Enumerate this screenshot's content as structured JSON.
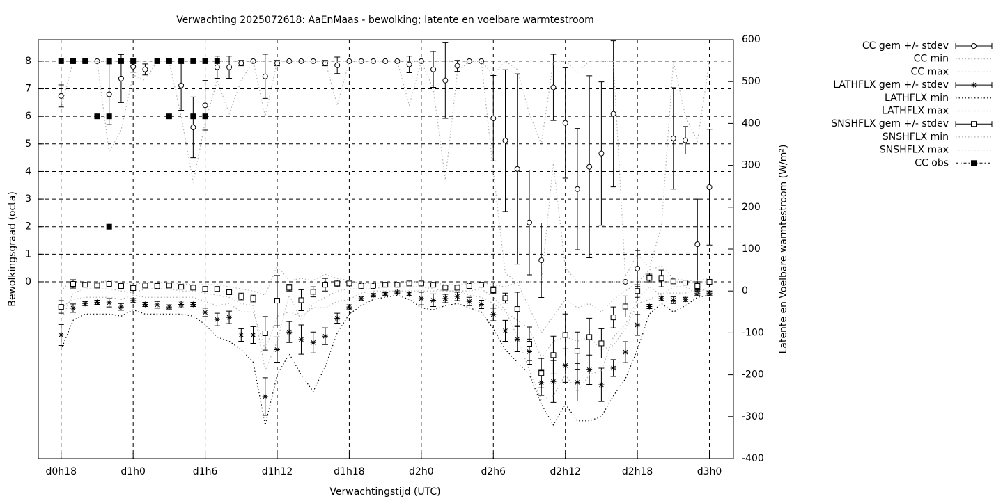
{
  "chart_data": {
    "type": "errorbar-line",
    "title": "Verwachting 2025072618: AaEnMaas - bewolking; latente en voelbare warmtestroom",
    "x_label": "Verwachtingstijd (UTC)",
    "y_label": "Bewolkingsgraad (octa)",
    "y2_label": "Latente en Voelbare warmtestroom (W/m²)",
    "x": [
      0,
      1,
      2,
      3,
      4,
      5,
      6,
      7,
      8,
      9,
      10,
      11,
      12,
      13,
      14,
      15,
      16,
      17,
      18,
      19,
      20,
      21,
      22,
      23,
      24,
      25,
      26,
      27,
      28,
      29,
      30,
      31,
      32,
      33,
      34,
      35,
      36,
      37,
      38,
      39,
      40,
      41,
      42,
      43,
      44,
      45,
      46,
      47,
      48,
      49,
      50,
      51,
      52,
      53,
      54
    ],
    "xlim": [
      -1.9,
      56.0
    ],
    "xticks": [
      {
        "value": 0,
        "label": "d0h18"
      },
      {
        "value": 6,
        "label": "d1h0"
      },
      {
        "value": 12,
        "label": "d1h6"
      },
      {
        "value": 18,
        "label": "d1h12"
      },
      {
        "value": 24,
        "label": "d1h18"
      },
      {
        "value": 30,
        "label": "d2h0"
      },
      {
        "value": 36,
        "label": "d2h6"
      },
      {
        "value": 42,
        "label": "d2h12"
      },
      {
        "value": 48,
        "label": "d2h18"
      },
      {
        "value": 54,
        "label": "d3h0"
      }
    ],
    "ylim": [
      -6.41,
      8.78
    ],
    "yticks": [
      0,
      1,
      2,
      3,
      4,
      5,
      6,
      7,
      8
    ],
    "y2lim": [
      -400,
      600
    ],
    "y2ticks": [
      -400,
      -300,
      -200,
      -100,
      0,
      100,
      200,
      300,
      400,
      500,
      600
    ],
    "grid": true,
    "legend": "outside-right",
    "series": [
      {
        "name": "CC gem +/- stdev",
        "style": "errorbar",
        "marker": "circle",
        "color": "#000000",
        "values": [
          6.74,
          8,
          8,
          8,
          6.8,
          7.37,
          7.8,
          7.7,
          8,
          8,
          7.12,
          5.6,
          6.4,
          7.78,
          7.78,
          7.93,
          8,
          7.45,
          7.93,
          8,
          8,
          8,
          7.93,
          7.85,
          8,
          8,
          8,
          8,
          8,
          7.88,
          8,
          7.7,
          7.3,
          7.83,
          8,
          8,
          5.93,
          5.12,
          4.09,
          2.15,
          0.78,
          7.05,
          5.76,
          3.36,
          4.17,
          4.65,
          6.09,
          0,
          0.48,
          0.15,
          0.13,
          5.2,
          5.13,
          1.36,
          3.43
        ],
        "errors": [
          0.4,
          0,
          0,
          0,
          1.1,
          0.87,
          0.2,
          0.2,
          0,
          0,
          0.9,
          1.1,
          0.9,
          0.4,
          0.4,
          0.1,
          0,
          0.8,
          0.1,
          0,
          0,
          0,
          0.1,
          0.3,
          0,
          0,
          0,
          0,
          0,
          0.3,
          0,
          0.65,
          1.37,
          0.2,
          0,
          0,
          1.55,
          2.57,
          3.45,
          1.9,
          1.35,
          1.2,
          2.0,
          2.2,
          3.3,
          2.6,
          2.65,
          0,
          0.65,
          0.1,
          0.1,
          1.84,
          0.5,
          1.64,
          2.1
        ]
      },
      {
        "name": "CC min",
        "style": "dotted",
        "color": "#b0b0b0",
        "values": [
          6.3,
          8,
          8,
          8,
          4.7,
          5.5,
          7.5,
          7.3,
          8,
          8,
          6.0,
          3.6,
          5.8,
          7.3,
          6.1,
          7.3,
          8,
          6.0,
          8,
          8,
          8,
          8,
          8,
          6.4,
          8,
          8,
          8,
          8,
          8,
          6.4,
          8,
          7.0,
          3.7,
          7.6,
          8,
          8,
          4.0,
          0.3,
          0,
          0,
          0,
          4.3,
          0.5,
          0,
          0,
          0,
          0,
          0,
          0,
          0,
          0,
          0,
          0,
          0,
          0
        ]
      },
      {
        "name": "CC max",
        "style": "dotted",
        "color": "#b0b0b0",
        "values": [
          8,
          8,
          8,
          8,
          8,
          8,
          8,
          8,
          8,
          8,
          8,
          8,
          8,
          8,
          8,
          8,
          8,
          8,
          8,
          8,
          8,
          8,
          8,
          8,
          8,
          8,
          8,
          8,
          8,
          8,
          8,
          8,
          8,
          8,
          8,
          8,
          7.5,
          8,
          7.7,
          6.1,
          5,
          8,
          8,
          7.6,
          8,
          8,
          8,
          0.2,
          1,
          0.5,
          2,
          8,
          6,
          5.1,
          8
        ]
      },
      {
        "name": "LATHFLX gem +/- stdev",
        "style": "errorbar",
        "marker": "star",
        "color": "#000000",
        "axis": "y2",
        "values": [
          -105,
          -41,
          -30,
          -27,
          -28,
          -38,
          -23,
          -32,
          -33,
          -38,
          -32,
          -32,
          -51,
          -68,
          -63,
          -105,
          -105,
          -252,
          -140,
          -98,
          -116,
          -123,
          -108,
          -65,
          -38,
          -18,
          -10,
          -7,
          -3,
          -7,
          -18,
          -22,
          -18,
          -13,
          -25,
          -32,
          -56,
          -95,
          -115,
          -145,
          -219,
          -216,
          -178,
          -218,
          -188,
          -224,
          -184,
          -146,
          -81,
          -37,
          -18,
          -22,
          -20,
          -5,
          -5
        ],
        "errors": [
          25,
          10,
          5,
          5,
          10,
          8,
          5,
          5,
          8,
          5,
          8,
          5,
          10,
          15,
          15,
          15,
          20,
          45,
          30,
          25,
          35,
          25,
          20,
          12,
          5,
          5,
          4,
          3,
          3,
          4,
          15,
          15,
          10,
          10,
          10,
          10,
          15,
          25,
          30,
          30,
          30,
          50,
          40,
          45,
          35,
          40,
          20,
          25,
          25,
          5,
          5,
          8,
          5,
          5,
          5
        ]
      },
      {
        "name": "LATHFLX min",
        "style": "dotted",
        "color": "#000000",
        "axis": "y2",
        "values": [
          -140,
          -70,
          -55,
          -55,
          -55,
          -60,
          -45,
          -55,
          -55,
          -55,
          -55,
          -60,
          -80,
          -110,
          -120,
          -140,
          -170,
          -320,
          -200,
          -150,
          -200,
          -240,
          -180,
          -100,
          -55,
          -35,
          -20,
          -15,
          -10,
          -20,
          -40,
          -45,
          -35,
          -30,
          -40,
          -50,
          -90,
          -140,
          -170,
          -200,
          -270,
          -320,
          -270,
          -310,
          -310,
          -300,
          -250,
          -210,
          -140,
          -55,
          -30,
          -50,
          -35,
          -15,
          -10
        ]
      },
      {
        "name": "LATHFLX max",
        "style": "dotted",
        "color": "#b0b0b0",
        "axis": "y2",
        "values": [
          -40,
          -20,
          -15,
          -15,
          -15,
          -20,
          -10,
          -15,
          -15,
          -15,
          -15,
          -15,
          -25,
          -35,
          -30,
          -50,
          -50,
          -140,
          -60,
          -50,
          -60,
          -40,
          -40,
          -25,
          -20,
          -5,
          0,
          0,
          0,
          0,
          0,
          0,
          0,
          0,
          -10,
          -15,
          -30,
          -50,
          -70,
          -90,
          -160,
          -120,
          -110,
          -120,
          -110,
          -140,
          -130,
          -90,
          -30,
          -20,
          -5,
          -5,
          -5,
          5,
          0
        ]
      },
      {
        "name": "SNSHFLX gem +/- stdev",
        "style": "errorbar",
        "marker": "square",
        "color": "#000000",
        "axis": "y2",
        "values": [
          -38,
          17,
          15,
          13,
          17,
          12,
          7,
          13,
          12,
          13,
          10,
          8,
          5,
          5,
          -3,
          -13,
          -18,
          -101,
          -23,
          8,
          -22,
          -2,
          15,
          18,
          18,
          12,
          12,
          15,
          15,
          18,
          18,
          15,
          8,
          8,
          12,
          15,
          2,
          -17,
          -43,
          -126,
          -196,
          -153,
          -105,
          -143,
          -110,
          -125,
          -63,
          -37,
          0,
          32,
          30,
          23,
          20,
          12,
          22
        ],
        "errors": [
          15,
          10,
          3,
          3,
          3,
          3,
          5,
          3,
          3,
          3,
          3,
          3,
          5,
          5,
          5,
          8,
          8,
          40,
          60,
          8,
          25,
          12,
          15,
          8,
          5,
          3,
          3,
          3,
          3,
          3,
          3,
          3,
          3,
          3,
          3,
          3,
          8,
          12,
          40,
          40,
          35,
          45,
          50,
          45,
          45,
          35,
          25,
          25,
          15,
          10,
          20,
          3,
          3,
          10,
          5
        ]
      },
      {
        "name": "SNSHFLX min",
        "style": "dotted",
        "color": "#b0b0b0",
        "axis": "y2",
        "values": [
          -70,
          -5,
          5,
          5,
          5,
          0,
          -5,
          5,
          5,
          5,
          0,
          0,
          -5,
          -10,
          -15,
          -30,
          -35,
          -190,
          -120,
          -10,
          -70,
          -30,
          -15,
          0,
          5,
          5,
          5,
          10,
          10,
          10,
          10,
          5,
          0,
          0,
          0,
          5,
          -15,
          -45,
          -110,
          -190,
          -260,
          -250,
          -200,
          -240,
          -200,
          -190,
          -110,
          -80,
          -20,
          10,
          -10,
          10,
          10,
          -5,
          10
        ]
      },
      {
        "name": "SNSHFLX max",
        "style": "dotted",
        "color": "#b0b0b0",
        "axis": "y2",
        "values": [
          0,
          30,
          20,
          20,
          25,
          20,
          15,
          20,
          20,
          20,
          18,
          15,
          15,
          15,
          10,
          5,
          0,
          -10,
          60,
          25,
          30,
          25,
          40,
          30,
          25,
          18,
          18,
          20,
          20,
          22,
          22,
          20,
          15,
          15,
          18,
          20,
          15,
          10,
          20,
          -40,
          -100,
          -60,
          -20,
          -40,
          -30,
          -50,
          -20,
          0,
          20,
          50,
          60,
          30,
          25,
          25,
          30
        ]
      },
      {
        "name": "CC obs",
        "style": "points",
        "marker": "filled-square",
        "color": "#000000",
        "x": [
          0,
          1,
          2,
          3,
          4,
          4,
          4,
          5,
          6,
          8,
          9,
          9,
          10,
          11,
          11,
          12,
          12,
          13
        ],
        "values": [
          8,
          8,
          8,
          6,
          8,
          6,
          2,
          8,
          8,
          8,
          8,
          6,
          8,
          8,
          6,
          8,
          6,
          8
        ]
      }
    ]
  }
}
